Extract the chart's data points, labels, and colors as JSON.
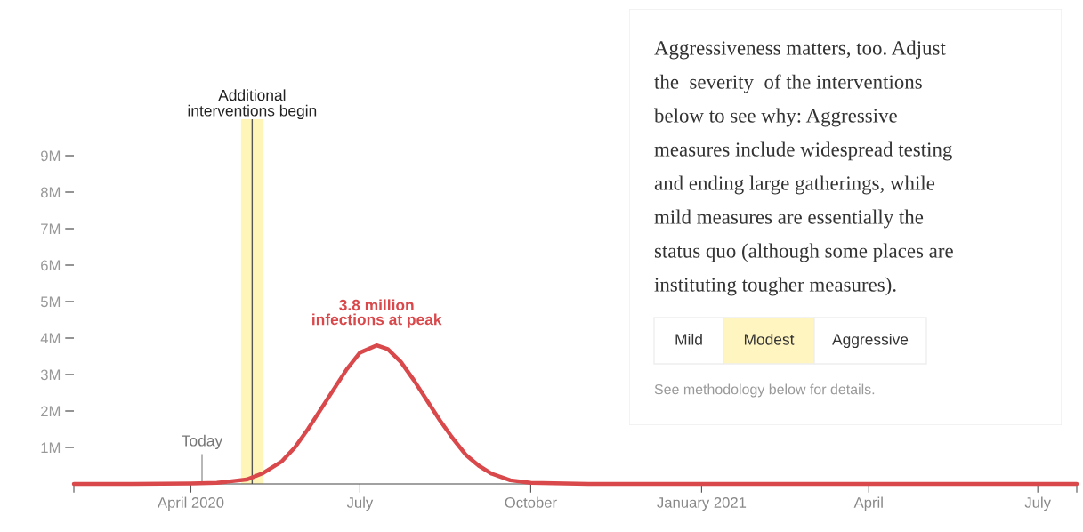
{
  "chart_data": [
    {
      "type": "line",
      "x": [
        "2020-01-29",
        "2020-03-01",
        "2020-04-01",
        "2020-04-15",
        "2020-05-01",
        "2020-05-10",
        "2020-05-20",
        "2020-05-27",
        "2020-06-03",
        "2020-06-10",
        "2020-06-17",
        "2020-06-24",
        "2020-07-01",
        "2020-07-10",
        "2020-07-16",
        "2020-07-23",
        "2020-07-30",
        "2020-08-06",
        "2020-08-13",
        "2020-08-20",
        "2020-08-27",
        "2020-09-03",
        "2020-09-10",
        "2020-09-20",
        "2020-10-01",
        "2020-11-01",
        "2021-07-22"
      ],
      "series": [
        {
          "color": "#d9484b",
          "values": [
            0,
            0,
            10000,
            30000,
            120000,
            300000,
            620000,
            1000000,
            1500000,
            2050000,
            2600000,
            3150000,
            3600000,
            3800000,
            3700000,
            3350000,
            2850000,
            2300000,
            1750000,
            1250000,
            800000,
            500000,
            280000,
            100000,
            30000,
            0,
            0
          ]
        }
      ],
      "xlim": [
        "2020-01-29",
        "2021-07-22"
      ],
      "xticks": [
        {
          "value": "2020-01-29",
          "label": null
        },
        {
          "value": "2020-04-01",
          "label": "April 2020"
        },
        {
          "value": "2020-07-01",
          "label": "July"
        },
        {
          "value": "2020-10-01",
          "label": "October"
        },
        {
          "value": "2021-01-01",
          "label": "January 2021"
        },
        {
          "value": "2021-04-01",
          "label": "April"
        },
        {
          "value": "2021-07-01",
          "label": "July"
        },
        {
          "value": "2021-07-22",
          "label": null
        }
      ],
      "ylim": [
        0,
        10000000
      ],
      "yticks": [
        {
          "value": 1000000,
          "label": "1M"
        },
        {
          "value": 2000000,
          "label": "2M"
        },
        {
          "value": 3000000,
          "label": "3M"
        },
        {
          "value": 4000000,
          "label": "4M"
        },
        {
          "value": 5000000,
          "label": "5M"
        },
        {
          "value": 6000000,
          "label": "6M"
        },
        {
          "value": 7000000,
          "label": "7M"
        },
        {
          "value": 8000000,
          "label": "8M"
        },
        {
          "value": 9000000,
          "label": "9M"
        }
      ],
      "bands": [
        {
          "axis": "x",
          "from": "2020-04-28",
          "to": "2020-05-10",
          "label": "Additional\ninterventions begin",
          "color": "#fff5b8"
        }
      ],
      "ref_lines": [
        {
          "axis": "x",
          "value": "2020-05-04",
          "color": "#555555"
        },
        {
          "axis": "x",
          "value": "2020-04-07",
          "label": "Today",
          "color": "#999999"
        }
      ],
      "annotations": [
        {
          "text": "3.8 million\ninfections at peak",
          "x": "2020-07-10",
          "y": 3800000
        }
      ],
      "grid": false,
      "legend": false
    },
    {
      "type": "other",
      "annotations": [
        "Aggressiveness matters, too. Adjust",
        "the  severity  of the interventions",
        "below to see why: Aggressive",
        "measures include widespread testing",
        "and ending large gatherings, while",
        "mild measures are essentially the",
        "status quo (although some places are",
        "instituting tougher measures).",
        "See methodology below for details."
      ],
      "categories": [
        "Mild",
        "Modest",
        "Aggressive"
      ],
      "colors": [
        "#ffffff",
        "#fff5c0",
        "#ffffff"
      ]
    }
  ]
}
